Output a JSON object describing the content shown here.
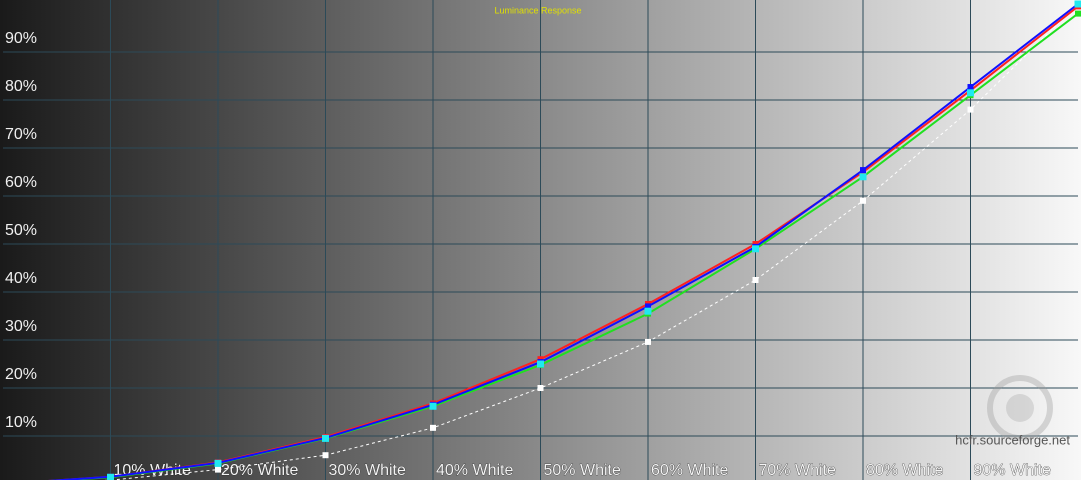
{
  "chart_data": {
    "type": "line",
    "title": "Luminance Response",
    "x": [
      0,
      10,
      20,
      30,
      40,
      50,
      60,
      70,
      80,
      90,
      100
    ],
    "xlim": [
      0,
      100
    ],
    "xticks": [
      {
        "value": 10,
        "label": "10% White"
      },
      {
        "value": 20,
        "label": "20% White"
      },
      {
        "value": 30,
        "label": "30% White"
      },
      {
        "value": 40,
        "label": "40% White"
      },
      {
        "value": 50,
        "label": "50% White"
      },
      {
        "value": 60,
        "label": "60% White"
      },
      {
        "value": 70,
        "label": "70% White"
      },
      {
        "value": 80,
        "label": "80% White"
      },
      {
        "value": 90,
        "label": "90% White"
      }
    ],
    "ylim": [
      0,
      100
    ],
    "yticks": [
      {
        "value": 10,
        "label": "10%"
      },
      {
        "value": 20,
        "label": "20%"
      },
      {
        "value": 30,
        "label": "30%"
      },
      {
        "value": 40,
        "label": "40%"
      },
      {
        "value": 50,
        "label": "50%"
      },
      {
        "value": 60,
        "label": "60%"
      },
      {
        "value": 70,
        "label": "70%"
      },
      {
        "value": 80,
        "label": "80%"
      },
      {
        "value": 90,
        "label": "90%"
      }
    ],
    "grid": true,
    "series": [
      {
        "color": "#ff2020",
        "values": [
          0,
          1.5,
          4.5,
          9.8,
          16.8,
          26,
          37.5,
          50,
          65,
          82,
          99.5
        ]
      },
      {
        "color": "#20e020",
        "values": [
          0,
          1.4,
          4.3,
          9.5,
          16.2,
          24.8,
          35.5,
          49,
          64,
          81,
          98
        ]
      },
      {
        "color": "#1010ff",
        "values": [
          0,
          1.5,
          4.4,
          9.6,
          16.5,
          25.4,
          37,
          49.4,
          65.4,
          82.7,
          100
        ]
      },
      {
        "color": "#ffffff",
        "dashed": true,
        "values": [
          0,
          0.8,
          3,
          6,
          11.7,
          20,
          29.6,
          42.5,
          59,
          78,
          100
        ]
      }
    ],
    "markers": {
      "color": "#20e8f0",
      "values": [
        0,
        1.4,
        4.3,
        9.5,
        16.2,
        25,
        36,
        49,
        64,
        81.5,
        100
      ]
    },
    "annotations": [
      "hcfr.sourceforge.net"
    ]
  }
}
